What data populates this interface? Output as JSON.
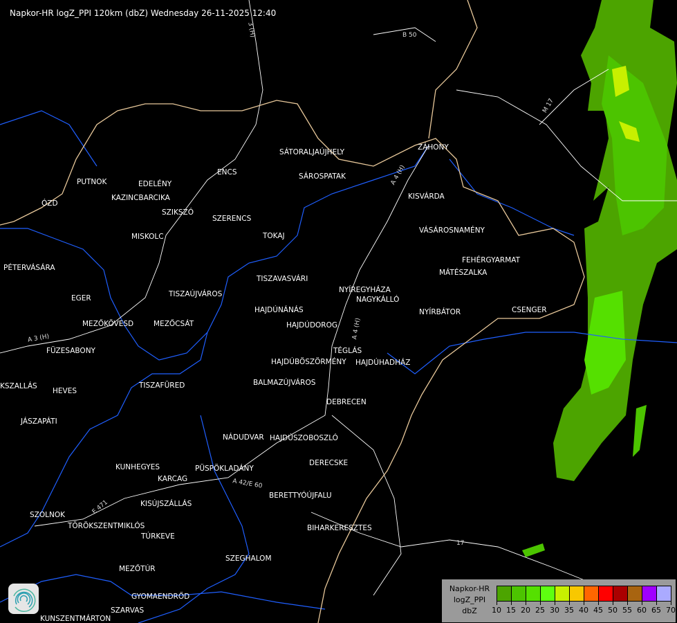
{
  "title": "Napkor-HR logZ_PPI 120km (dbZ) Wednesday 26-11-2025 12:40",
  "legend": {
    "lines": [
      "Napkor-HR",
      "logZ_PPI",
      "dbZ"
    ],
    "ticks": [
      "10",
      "15",
      "20",
      "25",
      "30",
      "35",
      "40",
      "45",
      "50",
      "55",
      "60",
      "65",
      "70"
    ],
    "colors": [
      "#4ca400",
      "#4cc400",
      "#55e000",
      "#5eff10",
      "#c8f000",
      "#f8c800",
      "#ff6600",
      "#ff0000",
      "#aa0000",
      "#a86410",
      "#a000ff",
      "#aaaaff"
    ]
  },
  "roads": [
    "B 50",
    "M 17",
    "3 (H)",
    "A 3 (H)",
    "A 4 (H)",
    "A 42/E 60",
    "E 471",
    "17",
    "A 4 (H)"
  ],
  "cities": [
    "SÁTORALJAÚJHELY",
    "SÁROSPATAK",
    "ZÁHONY",
    "PUTNOK",
    "EDELÉNY",
    "ENCS",
    "KAZINCBARCIKA",
    "ÓZD",
    "SZIKSZÓ",
    "SZERENCS",
    "KISVÁRDA",
    "TOKAJ",
    "MISKOLC",
    "VÁSÁROSNAMÉNY",
    "PÉTERVÁSÁRA",
    "FEHÉRGYARMAT",
    "MÁTÉSZALKA",
    "TISZAVASVÁRI",
    "NYÍREGYHÁZA",
    "EGER",
    "TISZAÚJVÁROS",
    "NAGYKÁLLÓ",
    "HAJDÚNÁNÁS",
    "NYÍRBÁTOR",
    "CSENGER",
    "MEZŐKÖVESD",
    "MEZŐCSÁT",
    "HAJDÚDOROG",
    "FÜZESABONY",
    "TÉGLÁS",
    "HAJDÚBÖSZÖRMÉNY",
    "HAJDÚHADHÁZ",
    "BALMAZÚJVÁROS",
    "KSZALLÁS",
    "TISZAFÜRED",
    "HEVES",
    "DEBRECEN",
    "JÁSZAPÁTI",
    "NÁDUDVAR",
    "HAJDÚSZOBOSZLÓ",
    "KUNHEGYES",
    "DERECSKE",
    "KARCAG",
    "PÜSPÖKLADÁNY",
    "BERETTYÓÚJFALU",
    "KISÚJSZÁLLÁS",
    "SZOLNOK",
    "TÖRÖKSZENTMIKLÓS",
    "BIHARKERESZTES",
    "TÚRKEVE",
    "SZEGHALOM",
    "MEZŐTÚR",
    "GYOMAENDRŐD",
    "SZARVAS",
    "KUNSZENTMÁRTON"
  ],
  "colors": {
    "border": "#e8c89a",
    "river": "#1f5fff",
    "road": "#ffffff",
    "background": "#000000"
  }
}
